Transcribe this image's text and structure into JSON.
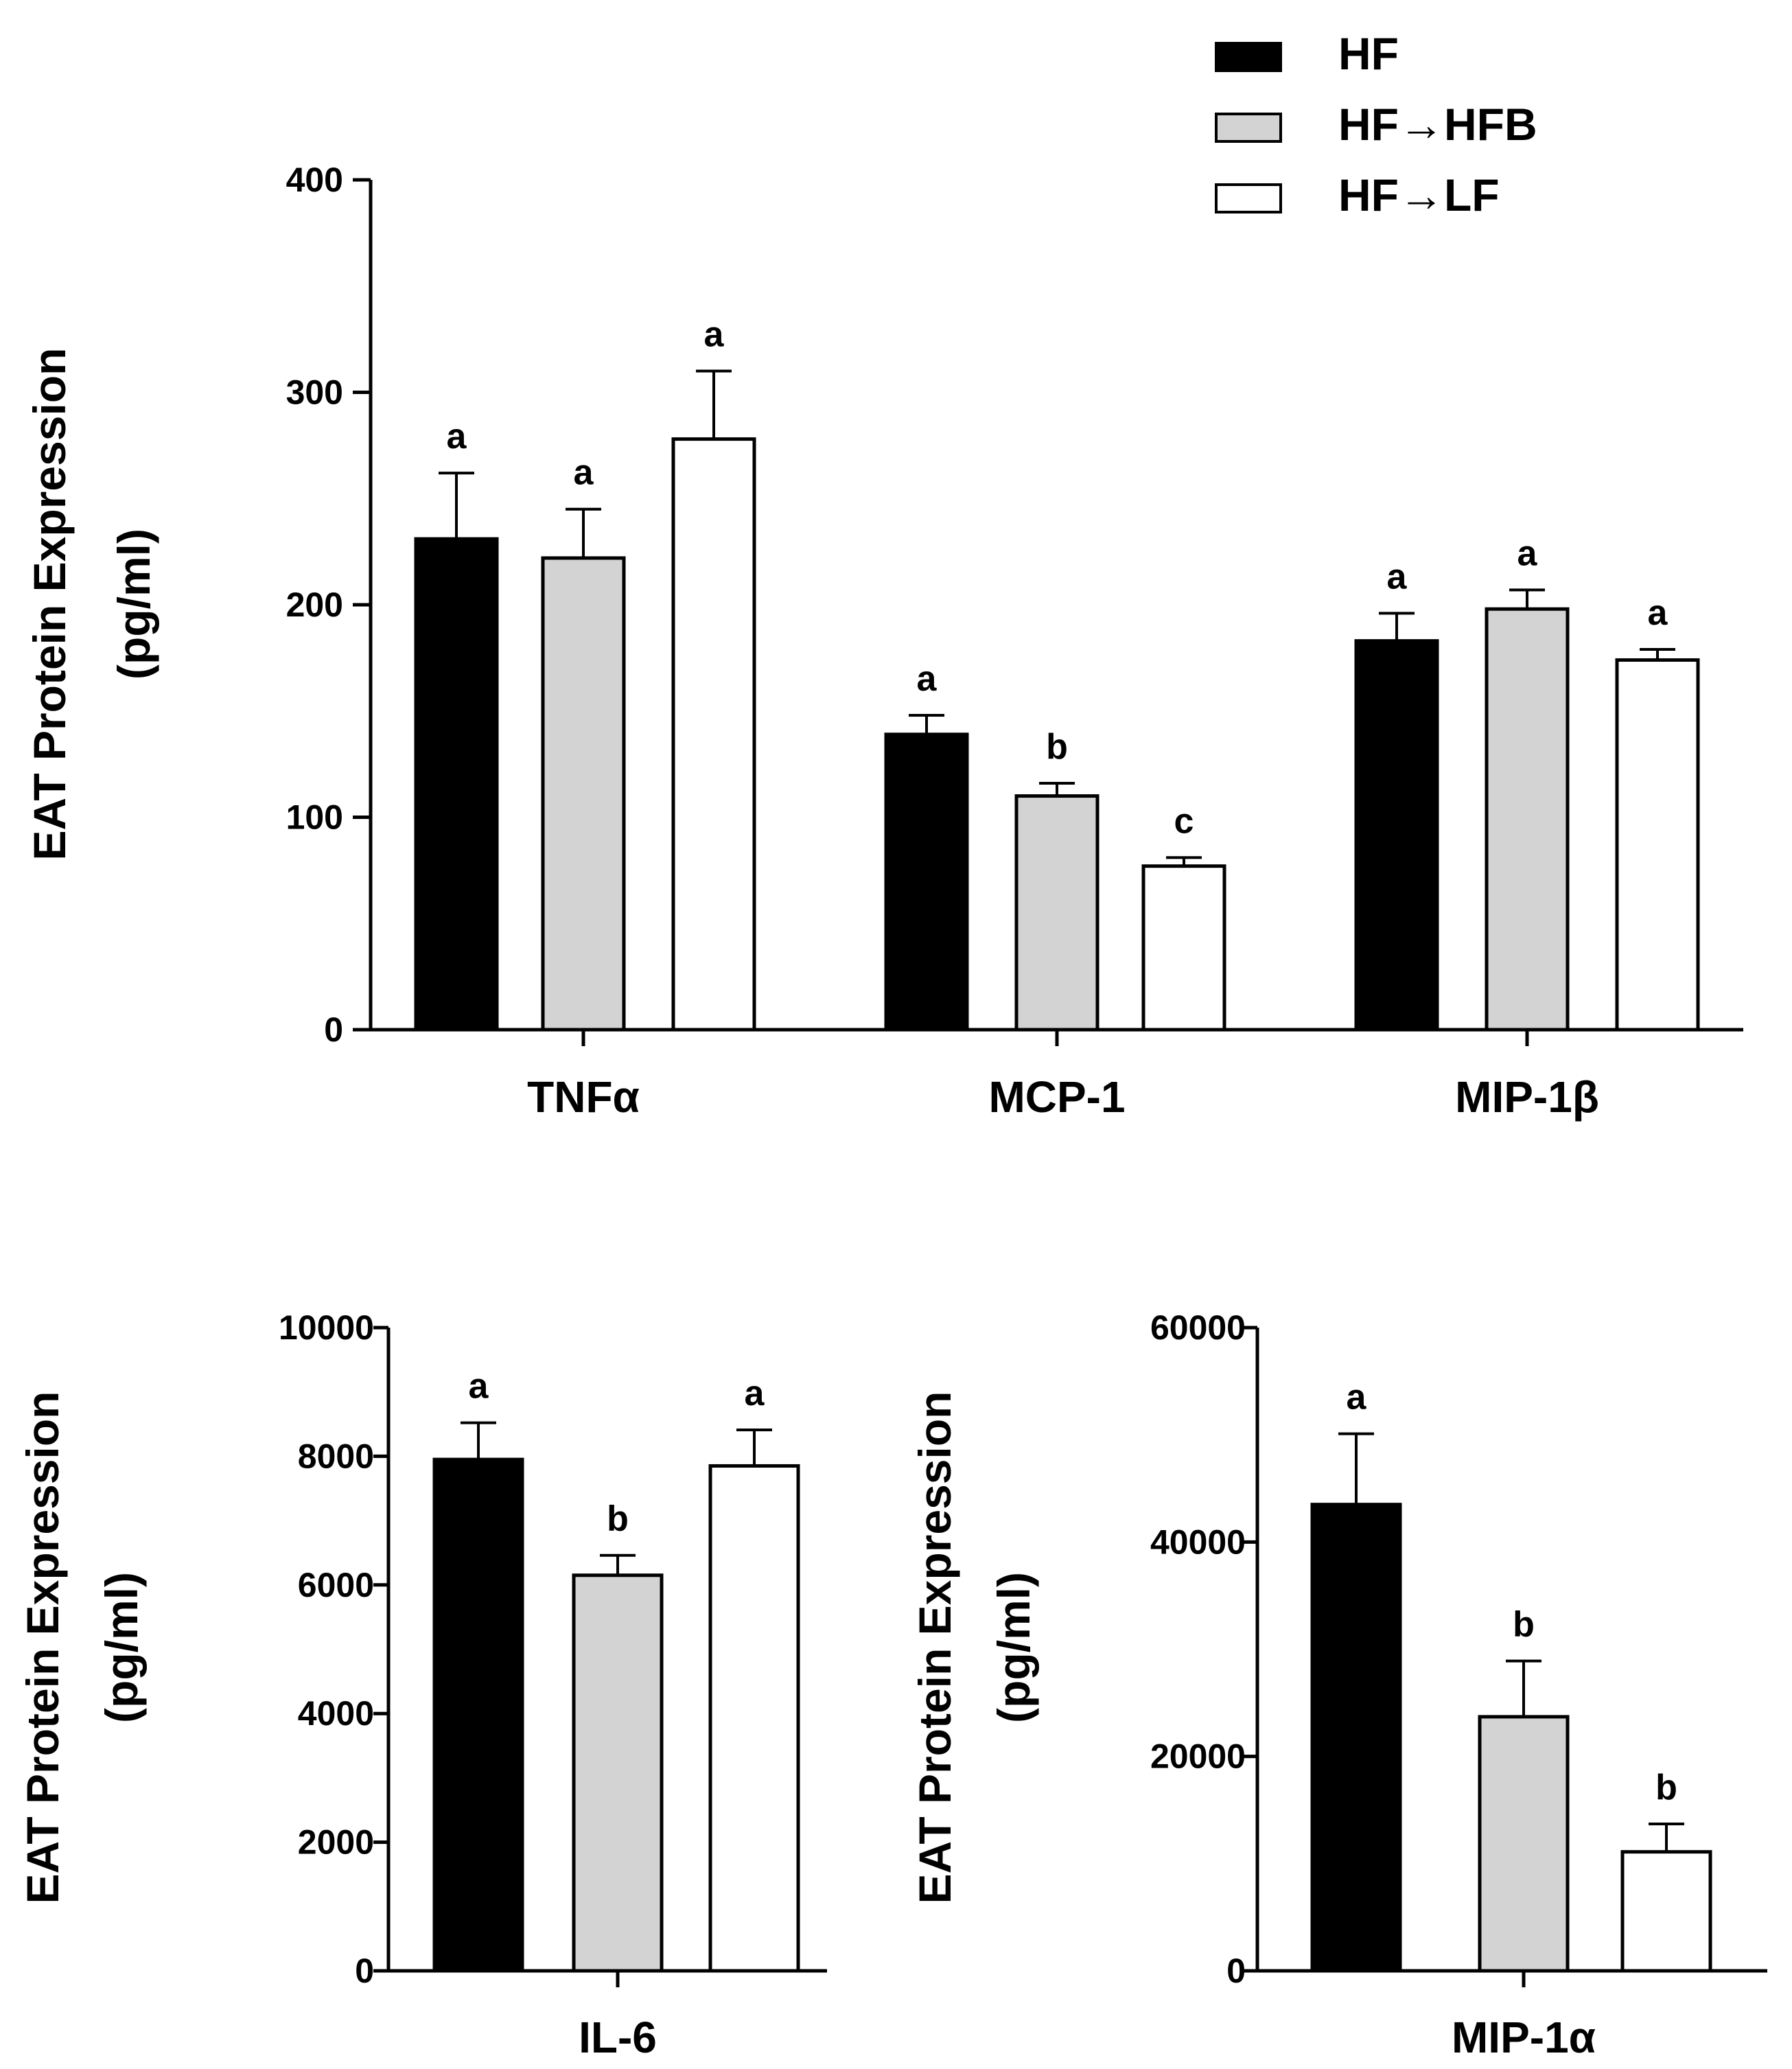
{
  "legend": [
    {
      "label": "HF",
      "color": "#000000"
    },
    {
      "label": "HF→HFB",
      "color": "#d3d3d3"
    },
    {
      "label": "HF→LF",
      "color": "#ffffff"
    }
  ],
  "chart_data": [
    {
      "type": "bar",
      "title": "",
      "xlabel": "",
      "ylabel": [
        "EAT Protein Expression",
        "(pg/ml)"
      ],
      "categories": [
        "TNFα",
        "MCP-1",
        "MIP-1β"
      ],
      "ylim": [
        0,
        400
      ],
      "yticks": [
        0,
        100,
        200,
        300,
        400
      ],
      "series": [
        {
          "name": "HF",
          "values": [
            231,
            139,
            183
          ],
          "errors": [
            31,
            9,
            13
          ],
          "labels": [
            "a",
            "a",
            "a"
          ]
        },
        {
          "name": "HF→HFB",
          "values": [
            222,
            110,
            198
          ],
          "errors": [
            23,
            6,
            9
          ],
          "labels": [
            "a",
            "b",
            "a"
          ]
        },
        {
          "name": "HF→LF",
          "values": [
            278,
            77,
            174
          ],
          "errors": [
            32,
            4,
            5
          ],
          "labels": [
            "a",
            "c",
            "a"
          ]
        }
      ]
    },
    {
      "type": "bar",
      "title": "",
      "xlabel": "",
      "ylabel": [
        "EAT Protein  Expression",
        "(pg/ml)"
      ],
      "categories": [
        "IL-6"
      ],
      "ylim": [
        0,
        10000
      ],
      "yticks": [
        0,
        2000,
        4000,
        6000,
        8000,
        10000
      ],
      "series": [
        {
          "name": "HF",
          "values": [
            7950
          ],
          "errors": [
            570
          ],
          "labels": [
            "a"
          ]
        },
        {
          "name": "HF→HFB",
          "values": [
            6150
          ],
          "errors": [
            310
          ],
          "labels": [
            "b"
          ]
        },
        {
          "name": "HF→LF",
          "values": [
            7850
          ],
          "errors": [
            560
          ],
          "labels": [
            "a"
          ]
        }
      ]
    },
    {
      "type": "bar",
      "title": "",
      "xlabel": "",
      "ylabel": [
        "EAT  Protein Expression",
        "(pg/ml)"
      ],
      "categories": [
        "MIP-1α"
      ],
      "ylim": [
        0,
        60000
      ],
      "yticks": [
        0,
        20000,
        40000,
        60000
      ],
      "series": [
        {
          "name": "HF",
          "values": [
            43500
          ],
          "errors": [
            6600
          ],
          "labels": [
            "a"
          ]
        },
        {
          "name": "HF→HFB",
          "values": [
            23700
          ],
          "errors": [
            5200
          ],
          "labels": [
            "b"
          ]
        },
        {
          "name": "HF→LF",
          "values": [
            11100
          ],
          "errors": [
            2600
          ],
          "labels": [
            "b"
          ]
        }
      ]
    }
  ]
}
